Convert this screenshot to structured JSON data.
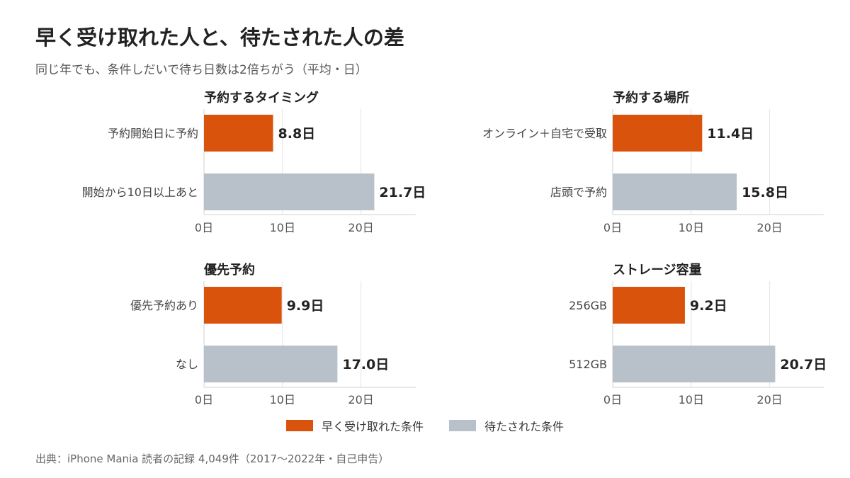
{
  "title": "早く受け取れた人と、待たされた人の差",
  "subtitle": "同じ年でも、条件しだいで待ち日数は2倍ちがう（平均・日）",
  "colors": {
    "early": "#d9530c",
    "late": "#b8c0c9",
    "grid": "#e3e3e3",
    "axis": "#d0d0d0"
  },
  "legend": {
    "early": "早く受け取れた条件",
    "late": "待たされた条件"
  },
  "source": "出典：iPhone Mania 読者の記録 4,049件（2017〜2022年・自己申告）",
  "chart_data": [
    {
      "type": "bar",
      "orientation": "horizontal",
      "title": "予約するタイミング",
      "categories": [
        "予約開始日に予約",
        "開始から10日以上あと"
      ],
      "values": [
        8.8,
        21.7
      ],
      "value_labels": [
        "8.8日",
        "21.7日"
      ],
      "series_role": [
        "early",
        "late"
      ],
      "xlim": [
        0,
        27
      ],
      "xticks": [
        0,
        10,
        20
      ],
      "xtick_labels": [
        "0日",
        "10日",
        "20日"
      ],
      "grid": true
    },
    {
      "type": "bar",
      "orientation": "horizontal",
      "title": "予約する場所",
      "categories": [
        "オンライン＋自宅で受取",
        "店頭で予約"
      ],
      "values": [
        11.4,
        15.8
      ],
      "value_labels": [
        "11.4日",
        "15.8日"
      ],
      "series_role": [
        "early",
        "late"
      ],
      "xlim": [
        0,
        27
      ],
      "xticks": [
        0,
        10,
        20
      ],
      "xtick_labels": [
        "0日",
        "10日",
        "20日"
      ],
      "grid": true
    },
    {
      "type": "bar",
      "orientation": "horizontal",
      "title": "優先予約",
      "categories": [
        "優先予約あり",
        "なし"
      ],
      "values": [
        9.9,
        17.0
      ],
      "value_labels": [
        "9.9日",
        "17.0日"
      ],
      "series_role": [
        "early",
        "late"
      ],
      "xlim": [
        0,
        27
      ],
      "xticks": [
        0,
        10,
        20
      ],
      "xtick_labels": [
        "0日",
        "10日",
        "20日"
      ],
      "grid": true
    },
    {
      "type": "bar",
      "orientation": "horizontal",
      "title": "ストレージ容量",
      "categories": [
        "256GB",
        "512GB"
      ],
      "values": [
        9.2,
        20.7
      ],
      "value_labels": [
        "9.2日",
        "20.7日"
      ],
      "series_role": [
        "early",
        "late"
      ],
      "xlim": [
        0,
        27
      ],
      "xticks": [
        0,
        10,
        20
      ],
      "xtick_labels": [
        "0日",
        "10日",
        "20日"
      ],
      "grid": true
    }
  ]
}
